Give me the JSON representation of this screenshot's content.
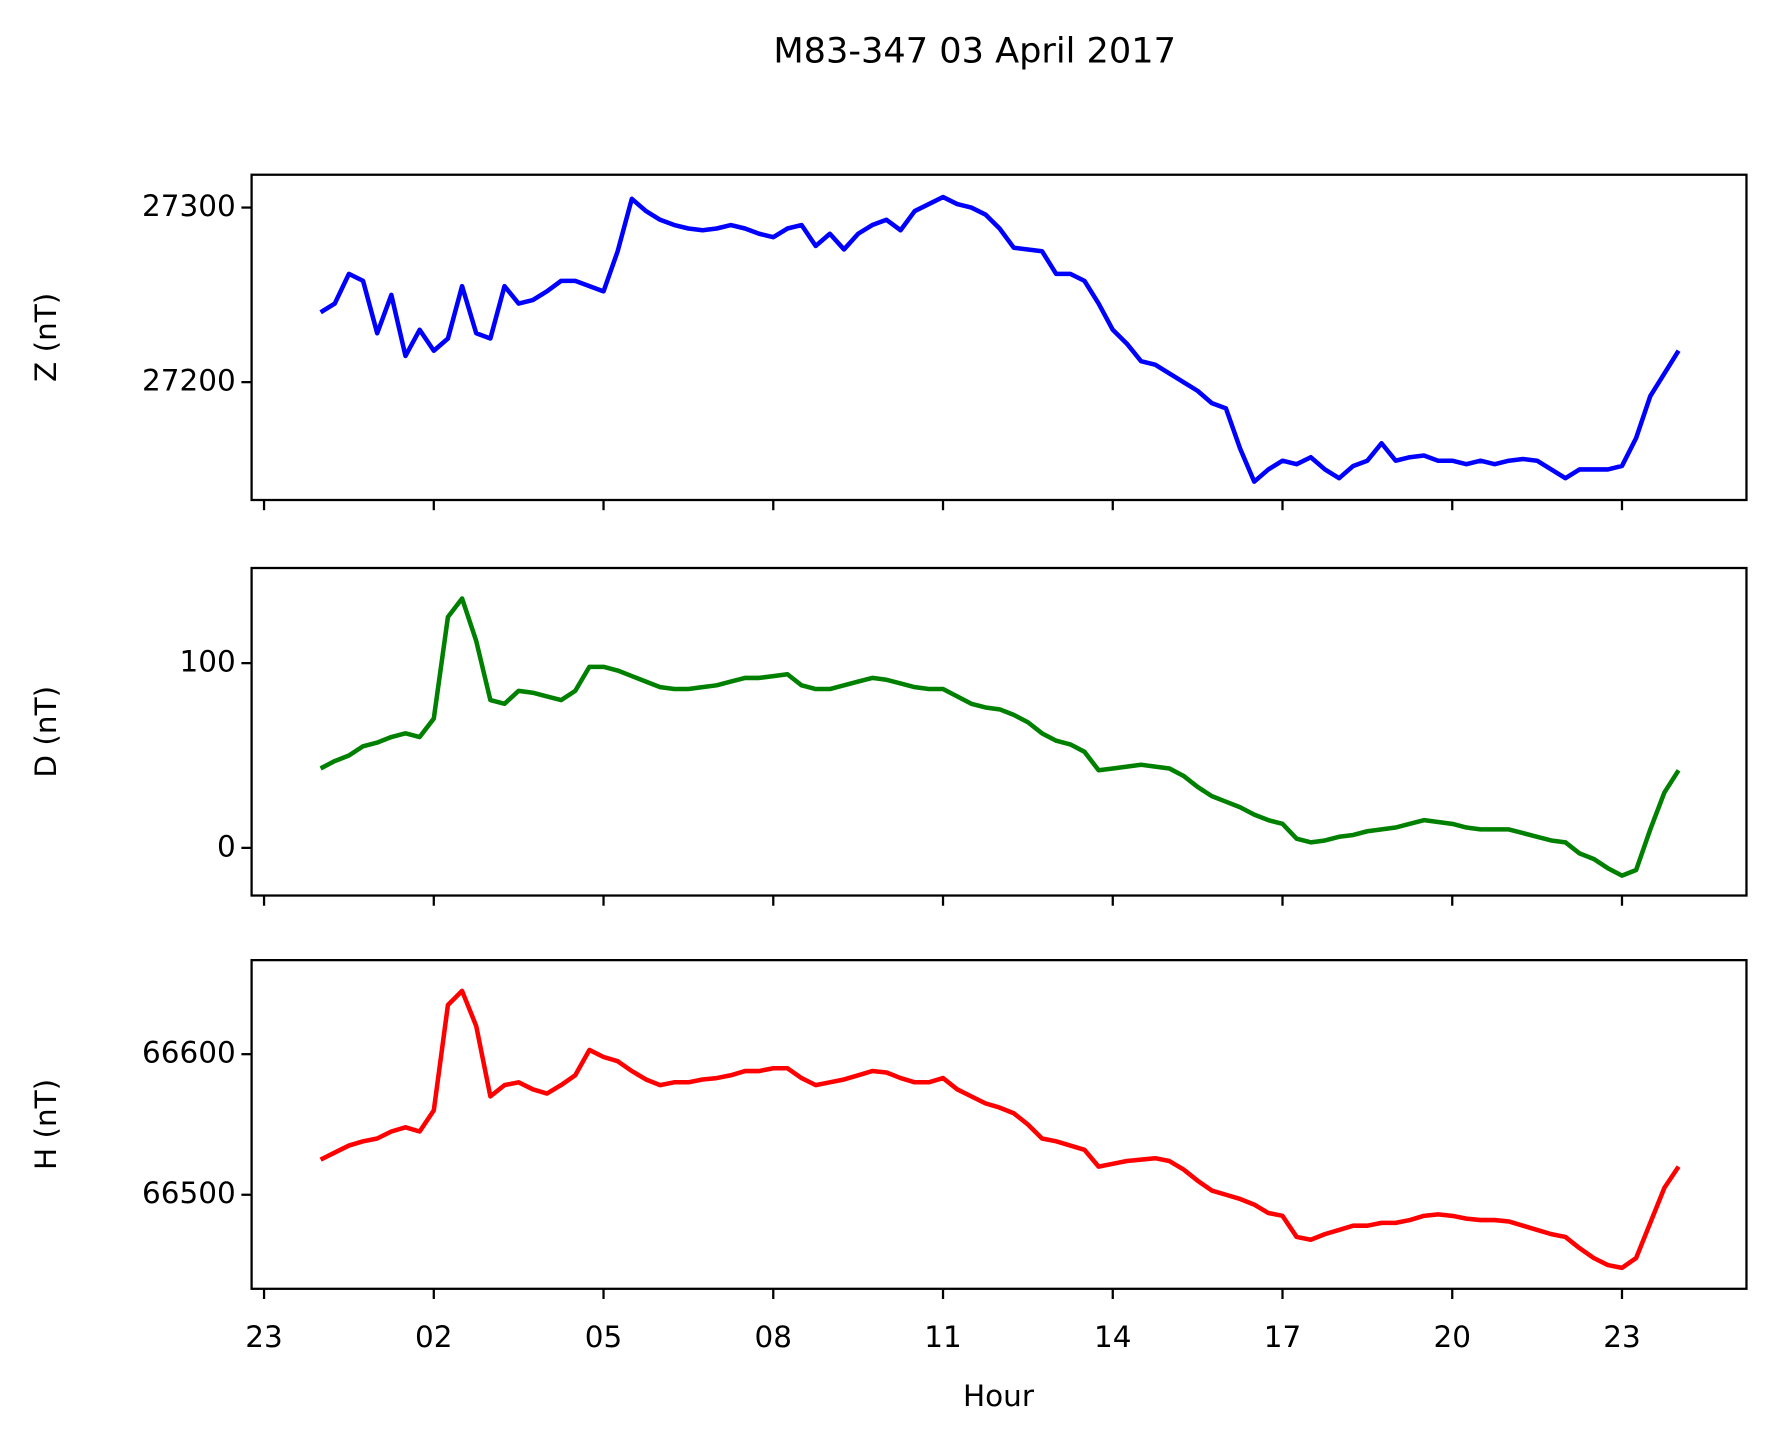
{
  "chart_data": {
    "type": "line",
    "title": "M83-347 03 April 2017",
    "xlabel": "Hour",
    "xlim": [
      -1.22,
      25.2
    ],
    "xticks": [
      {
        "value": -1,
        "label": "23"
      },
      {
        "value": 2,
        "label": "02"
      },
      {
        "value": 5,
        "label": "05"
      },
      {
        "value": 8,
        "label": "08"
      },
      11,
      14,
      17,
      20,
      23
    ],
    "x": [
      0,
      0.25,
      0.5,
      0.75,
      1,
      1.25,
      1.5,
      1.75,
      2,
      2.25,
      2.5,
      2.75,
      3,
      3.25,
      3.5,
      3.75,
      4,
      4.25,
      4.5,
      4.75,
      5,
      5.25,
      5.5,
      5.75,
      6,
      6.25,
      6.5,
      6.75,
      7,
      7.25,
      7.5,
      7.75,
      8,
      8.25,
      8.5,
      8.75,
      9,
      9.25,
      9.5,
      9.75,
      10,
      10.25,
      10.5,
      10.75,
      11,
      11.25,
      11.5,
      11.75,
      12,
      12.25,
      12.5,
      12.75,
      13,
      13.25,
      13.5,
      13.75,
      14,
      14.25,
      14.5,
      14.75,
      15,
      15.25,
      15.5,
      15.75,
      16,
      16.25,
      16.5,
      16.75,
      17,
      17.25,
      17.5,
      17.75,
      18,
      18.25,
      18.5,
      18.75,
      19,
      19.25,
      19.5,
      19.75,
      20,
      20.25,
      20.5,
      20.75,
      21,
      21.25,
      21.5,
      21.75,
      22,
      22.25,
      22.5,
      22.75,
      23,
      23.25,
      23.5,
      23.75,
      24
    ],
    "panels": [
      {
        "ylabel": "Z (nT)",
        "color": "#0000ff",
        "ylim": [
          27132.5,
          27318.8
        ],
        "yticks": [
          27200,
          27300
        ],
        "values": [
          27240,
          27245,
          27262,
          27258,
          27228,
          27250,
          27215,
          27230,
          27218,
          27225,
          27255,
          27228,
          27225,
          27255,
          27245,
          27247,
          27252,
          27258,
          27258,
          27255,
          27252,
          27275,
          27305,
          27298,
          27293,
          27290,
          27288,
          27287,
          27288,
          27290,
          27288,
          27285,
          27283,
          27288,
          27290,
          27278,
          27285,
          27276,
          27285,
          27290,
          27293,
          27287,
          27298,
          27302,
          27306,
          27302,
          27300,
          27296,
          27288,
          27277,
          27276,
          27275,
          27262,
          27262,
          27258,
          27245,
          27230,
          27222,
          27212,
          27210,
          27205,
          27200,
          27195,
          27188,
          27185,
          27162,
          27143,
          27150,
          27155,
          27153,
          27157,
          27150,
          27145,
          27152,
          27155,
          27165,
          27155,
          27157,
          27158,
          27155,
          27155,
          27153,
          27155,
          27153,
          27155,
          27156,
          27155,
          27150,
          27145,
          27150,
          27150,
          27150,
          27152,
          27168,
          27192,
          27205,
          27218
        ]
      },
      {
        "ylabel": "D (nT)",
        "color": "#008000",
        "ylim": [
          -25.8,
          151.5
        ],
        "yticks": [
          0,
          100
        ],
        "values": [
          43,
          47,
          50,
          55,
          57,
          60,
          62,
          60,
          70,
          125,
          135,
          112,
          80,
          78,
          85,
          84,
          82,
          80,
          85,
          98,
          98,
          96,
          93,
          90,
          87,
          86,
          86,
          87,
          88,
          90,
          92,
          92,
          93,
          94,
          88,
          86,
          86,
          88,
          90,
          92,
          91,
          89,
          87,
          86,
          86,
          82,
          78,
          76,
          75,
          72,
          68,
          62,
          58,
          56,
          52,
          42,
          43,
          44,
          45,
          44,
          43,
          39,
          33,
          28,
          25,
          22,
          18,
          15,
          13,
          5,
          3,
          4,
          6,
          7,
          9,
          10,
          11,
          13,
          15,
          14,
          13,
          11,
          10,
          10,
          10,
          8,
          6,
          4,
          3,
          -3,
          -6,
          -11,
          -15,
          -12,
          10,
          30,
          42
        ]
      },
      {
        "ylabel": "H (nT)",
        "color": "#ff0000",
        "ylim": [
          66433.1,
          66666.9
        ],
        "yticks": [
          66500,
          66600
        ],
        "values": [
          66525,
          66530,
          66535,
          66538,
          66540,
          66545,
          66548,
          66545,
          66560,
          66635,
          66645,
          66620,
          66570,
          66578,
          66580,
          66575,
          66572,
          66578,
          66585,
          66603,
          66598,
          66595,
          66588,
          66582,
          66578,
          66580,
          66580,
          66582,
          66583,
          66585,
          66588,
          66588,
          66590,
          66590,
          66583,
          66578,
          66580,
          66582,
          66585,
          66588,
          66587,
          66583,
          66580,
          66580,
          66583,
          66575,
          66570,
          66565,
          66562,
          66558,
          66550,
          66540,
          66538,
          66535,
          66532,
          66520,
          66522,
          66524,
          66525,
          66526,
          66524,
          66518,
          66510,
          66503,
          66500,
          66497,
          66493,
          66487,
          66485,
          66470,
          66468,
          66472,
          66475,
          66478,
          66478,
          66480,
          66480,
          66482,
          66485,
          66486,
          66485,
          66483,
          66482,
          66482,
          66481,
          66478,
          66475,
          66472,
          66470,
          66462,
          66455,
          66450,
          66448,
          66455,
          66480,
          66505,
          66520
        ]
      }
    ]
  }
}
